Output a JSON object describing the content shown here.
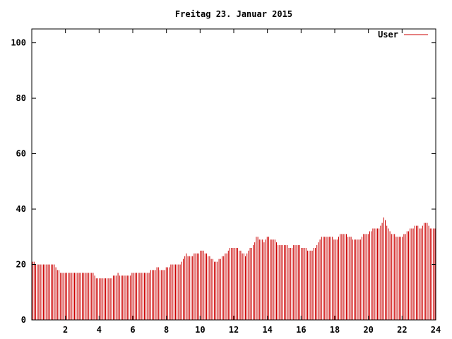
{
  "chart_data": {
    "type": "bar",
    "title": "Freitag 23. Januar 2015",
    "xlabel": "",
    "ylabel": "",
    "xlim": [
      0,
      24
    ],
    "ylim": [
      0,
      105
    ],
    "x_ticks": [
      "2",
      "4",
      "6",
      "8",
      "10",
      "12",
      "14",
      "16",
      "18",
      "20",
      "22",
      "24"
    ],
    "y_ticks": [
      "0",
      "20",
      "40",
      "60",
      "80",
      "100"
    ],
    "grid": false,
    "legend": {
      "position": "top-right"
    },
    "series": [
      {
        "name": "User",
        "color": "#cc0000",
        "values": [
          21,
          21,
          20,
          20,
          20,
          20,
          20,
          20,
          20,
          20,
          20,
          20,
          20,
          20,
          20,
          19,
          18,
          18,
          17,
          17,
          17,
          17,
          17,
          17,
          17,
          17,
          17,
          17,
          17,
          17,
          17,
          17,
          17,
          17,
          17,
          17,
          17,
          17,
          17,
          17,
          16,
          15,
          15,
          15,
          15,
          15,
          15,
          15,
          15,
          15,
          15,
          15,
          16,
          16,
          16,
          17,
          16,
          16,
          16,
          16,
          16,
          16,
          16,
          16,
          17,
          17,
          17,
          17,
          17,
          17,
          17,
          17,
          17,
          17,
          17,
          17,
          18,
          18,
          18,
          18,
          19,
          19,
          18,
          18,
          18,
          18,
          19,
          19,
          19,
          20,
          20,
          20,
          20,
          20,
          20,
          20,
          21,
          22,
          23,
          24,
          23,
          23,
          23,
          23,
          24,
          24,
          24,
          24,
          25,
          25,
          25,
          24,
          24,
          23,
          23,
          22,
          22,
          21,
          21,
          21,
          22,
          22,
          23,
          23,
          24,
          24,
          25,
          26,
          26,
          26,
          26,
          26,
          26,
          25,
          25,
          24,
          24,
          23,
          24,
          25,
          26,
          26,
          27,
          28,
          30,
          30,
          29,
          29,
          29,
          28,
          29,
          30,
          30,
          29,
          29,
          29,
          29,
          28,
          27,
          27,
          27,
          27,
          27,
          27,
          27,
          26,
          26,
          26,
          27,
          27,
          27,
          27,
          27,
          26,
          26,
          26,
          26,
          25,
          25,
          25,
          25,
          26,
          26,
          27,
          28,
          29,
          30,
          30,
          30,
          30,
          30,
          30,
          30,
          30,
          29,
          29,
          29,
          30,
          31,
          31,
          31,
          31,
          31,
          30,
          30,
          30,
          29,
          29,
          29,
          29,
          29,
          29,
          30,
          31,
          31,
          31,
          31,
          32,
          32,
          33,
          33,
          33,
          33,
          33,
          34,
          35,
          37,
          36,
          34,
          33,
          32,
          31,
          31,
          31,
          30,
          30,
          30,
          30,
          30,
          31,
          31,
          32,
          32,
          33,
          33,
          33,
          34,
          34,
          34,
          33,
          33,
          34,
          35,
          35,
          35,
          34,
          33,
          33,
          33,
          33
        ]
      }
    ]
  }
}
